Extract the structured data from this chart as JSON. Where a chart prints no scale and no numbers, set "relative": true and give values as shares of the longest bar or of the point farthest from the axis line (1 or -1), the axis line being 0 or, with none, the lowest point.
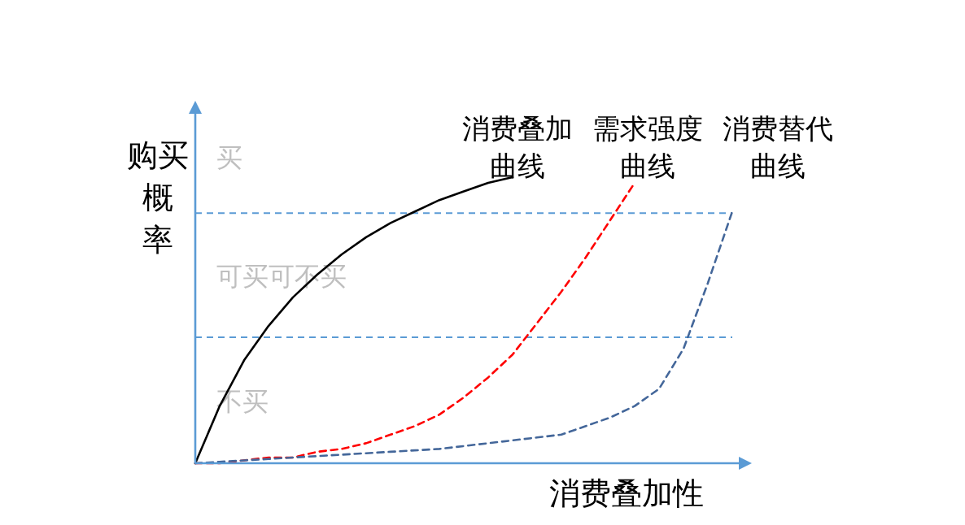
{
  "chart_data": {
    "type": "line",
    "relative": true,
    "xlabel": "消费叠加性",
    "ylabel": "购买概率",
    "categories": [
      null,
      null,
      null,
      null,
      null,
      null,
      null,
      null,
      null,
      null,
      null,
      null,
      null,
      null,
      null,
      null,
      null,
      null,
      null,
      null,
      null,
      null,
      null
    ],
    "series": [
      {
        "name": "消费叠加曲线",
        "color": "#000000",
        "line_style": "solid",
        "values": [
          0,
          0.2,
          0.36,
          0.48,
          0.58,
          0.66,
          0.73,
          0.79,
          0.84,
          0.88,
          0.92,
          0.95,
          0.98,
          1,
          null,
          null,
          null,
          null,
          null,
          null,
          null,
          null,
          null
        ]
      },
      {
        "name": "需求强度曲线",
        "color": "#ff0000",
        "line_style": "dashed",
        "values": [
          0,
          0,
          0.01,
          0.02,
          0.02,
          0.04,
          0.05,
          0.07,
          0.1,
          0.13,
          0.17,
          0.23,
          0.3,
          0.38,
          0.49,
          0.6,
          0.72,
          0.85,
          0.98,
          null,
          null,
          null,
          null
        ]
      },
      {
        "name": "消费替代曲线",
        "color": "#44679a",
        "line_style": "dashed",
        "values": [
          0,
          0.005,
          0.01,
          0.015,
          0.02,
          0.025,
          0.03,
          0.035,
          0.04,
          0.045,
          0.05,
          0.06,
          0.07,
          0.08,
          0.09,
          0.1,
          0.13,
          0.16,
          0.2,
          0.26,
          0.4,
          0.63,
          0.88
        ]
      }
    ],
    "ref_lines": [
      {
        "axis": "y",
        "value": 0.874,
        "color": "#5b9bd5",
        "line_style": "dashed"
      },
      {
        "axis": "y",
        "value": 0.44,
        "color": "#5b9bd5",
        "line_style": "dashed"
      }
    ],
    "annotations": [
      "买",
      "可买可不买",
      "不买"
    ]
  }
}
